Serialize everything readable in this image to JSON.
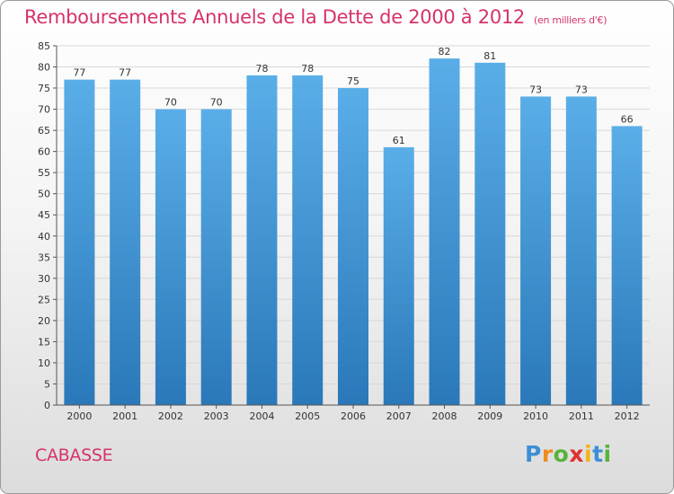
{
  "chart_data": {
    "type": "bar",
    "title": "Remboursements Annuels de la Dette de 2000 à 2012",
    "unit_note": "(en milliers d'€)",
    "categories": [
      "2000",
      "2001",
      "2002",
      "2003",
      "2004",
      "2005",
      "2006",
      "2007",
      "2008",
      "2009",
      "2010",
      "2011",
      "2012"
    ],
    "values": [
      77,
      77,
      70,
      70,
      78,
      78,
      75,
      61,
      82,
      81,
      73,
      73,
      66
    ],
    "ylim": [
      0,
      85
    ],
    "yticks": [
      0,
      5,
      10,
      15,
      20,
      25,
      30,
      35,
      40,
      45,
      50,
      55,
      60,
      65,
      70,
      75,
      80,
      85
    ],
    "xlabel": "",
    "ylabel": "",
    "grid": true,
    "colors": {
      "bar_top": "#5aaee8",
      "bar_bottom": "#2a78b9",
      "grid": "#d8d8d8",
      "axis": "#555555"
    }
  },
  "footer": {
    "commune": "CABASSE",
    "logo": [
      "P",
      "r",
      "o",
      "x",
      "i",
      "t",
      "i"
    ]
  }
}
